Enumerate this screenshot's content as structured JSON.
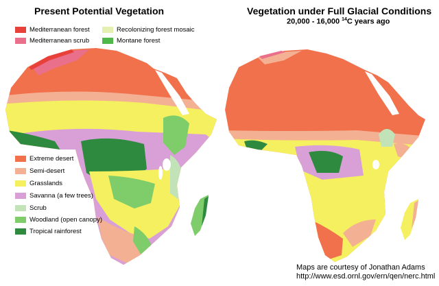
{
  "titles": {
    "left": "Present Potential Vegetation",
    "right": "Vegetation under Full Glacial Conditions",
    "right_subtitle_prefix": "20,000 - 16,000 ",
    "right_subtitle_sup": "14",
    "right_subtitle_suffix": "C years ago"
  },
  "legend": {
    "mediterranean_forest": {
      "label": "Mediterranean forest",
      "color": "#e8403a"
    },
    "mediterranean_scrub": {
      "label": "Mediterranean scrub",
      "color": "#ea6f8a"
    },
    "recolonizing_forest": {
      "label": "Recolonizing forest mosaic",
      "color": "#e3f0b0"
    },
    "montane_forest": {
      "label": "Montane forest",
      "color": "#4fb84a"
    },
    "extreme_desert": {
      "label": "Extreme desert",
      "color": "#f0714c"
    },
    "semi_desert": {
      "label": "Semi-desert",
      "color": "#f4b092"
    },
    "grasslands": {
      "label": "Grasslands",
      "color": "#f4f060"
    },
    "savanna": {
      "label": "Savanna (a few trees)",
      "color": "#d9a0d8"
    },
    "scrub": {
      "label": "Scrub",
      "color": "#c2e2b8"
    },
    "woodland": {
      "label": "Woodland (open canopy)",
      "color": "#7fcc6a"
    },
    "tropical_rainforest": {
      "label": "Tropical rainforest",
      "color": "#2e8a3e"
    }
  },
  "credit": {
    "line1": "Maps are courtesy of Jonathan Adams",
    "line2": "http://www.esd.ornl.gov/ern/qen/nerc.html"
  }
}
